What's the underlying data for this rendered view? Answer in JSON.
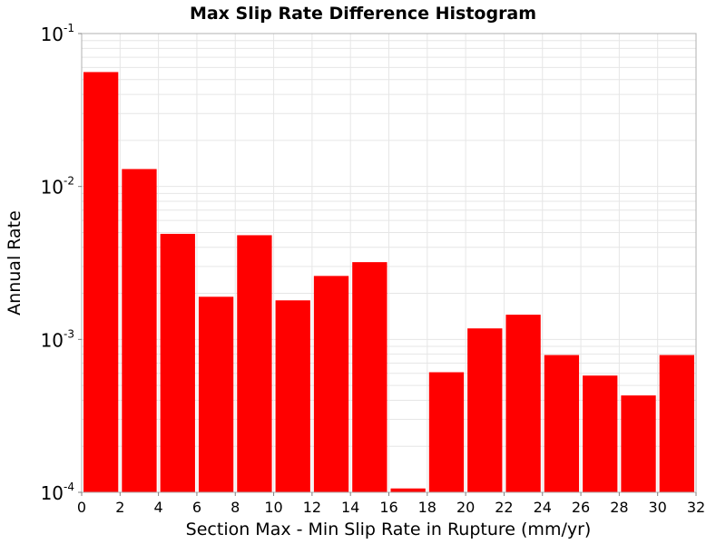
{
  "chart_data": {
    "type": "bar",
    "title": "Max Slip Rate Difference Histogram",
    "xlabel": "Section Max - Min Slip Rate in Rupture (mm/yr)",
    "ylabel": "Annual Rate",
    "x_bin_edges": [
      0,
      2,
      4,
      6,
      8,
      10,
      12,
      14,
      16,
      18,
      20,
      22,
      24,
      26,
      28,
      30,
      32
    ],
    "values": [
      0.056,
      0.013,
      0.0049,
      0.0019,
      0.0048,
      0.0018,
      0.0026,
      0.0032,
      0.000106,
      0.00061,
      0.00118,
      0.00145,
      0.00079,
      0.00058,
      0.00043,
      0.00079
    ],
    "xlim": [
      0,
      32
    ],
    "ylim": [
      0.0001,
      0.1
    ],
    "y_scale": "log",
    "x_ticks": [
      "0",
      "2",
      "4",
      "6",
      "8",
      "10",
      "12",
      "14",
      "16",
      "18",
      "20",
      "22",
      "24",
      "26",
      "28",
      "30",
      "32"
    ],
    "y_ticks": [
      {
        "base": "10",
        "exp": "-1",
        "value": 0.1
      },
      {
        "base": "10",
        "exp": "-2",
        "value": 0.01
      },
      {
        "base": "10",
        "exp": "-3",
        "value": 0.001
      },
      {
        "base": "10",
        "exp": "-4",
        "value": 0.0001
      }
    ],
    "grid": true,
    "bar_color": "#ff0000",
    "background_color": "#ffffff",
    "grid_color": "#e6e6e6",
    "axis_color": "#b0b0b0"
  }
}
